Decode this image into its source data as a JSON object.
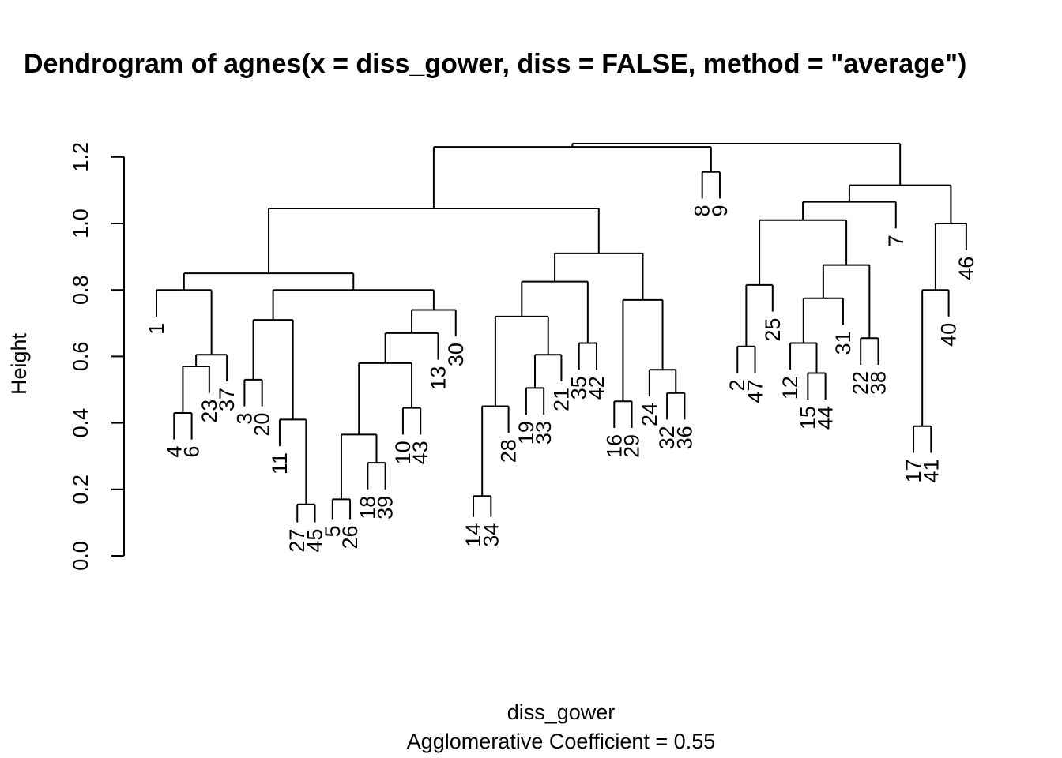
{
  "chart_data": {
    "type": "dendrogram",
    "title": "Dendrogram of  agnes(x = diss_gower, diss = FALSE, method = \"average\")",
    "xlabel": "diss_gower",
    "subtitle": "Agglomerative Coefficient =  0.55",
    "ylabel": "Height",
    "ylim": [
      0,
      1.3
    ],
    "yticks": [
      "0.0",
      "0.2",
      "0.4",
      "0.6",
      "0.8",
      "1.0",
      "1.2"
    ],
    "leaf_order": [
      "1",
      "4",
      "6",
      "23",
      "37",
      "3",
      "20",
      "11",
      "27",
      "45",
      "5",
      "26",
      "18",
      "39",
      "10",
      "43",
      "13",
      "30",
      "14",
      "34",
      "28",
      "19",
      "33",
      "21",
      "35",
      "42",
      "16",
      "29",
      "24",
      "32",
      "36",
      "8",
      "9",
      "2",
      "47",
      "25",
      "12",
      "15",
      "44",
      "31",
      "22",
      "38",
      "7",
      "17",
      "41",
      "40",
      "46"
    ],
    "merges": [
      {
        "a": "27",
        "b": "45",
        "h": 0.155
      },
      {
        "a": "5",
        "b": "26",
        "h": 0.17
      },
      {
        "a": "14",
        "b": "34",
        "h": 0.18
      },
      {
        "a": "18",
        "b": "39",
        "h": 0.28
      },
      {
        "a": "17",
        "b": "41",
        "h": 0.39
      },
      {
        "a": "5,26",
        "b": "18,39",
        "h": 0.365
      },
      {
        "a": "4",
        "b": "6",
        "h": 0.43
      },
      {
        "a": "10",
        "b": "43",
        "h": 0.445
      },
      {
        "a": "14,34",
        "b": "28",
        "h": 0.45
      },
      {
        "a": "16",
        "b": "29",
        "h": 0.465
      },
      {
        "a": "32",
        "b": "36",
        "h": 0.49
      },
      {
        "a": "19",
        "b": "33",
        "h": 0.505
      },
      {
        "a": "3",
        "b": "20",
        "h": 0.53
      },
      {
        "a": "15",
        "b": "44",
        "h": 0.55
      },
      {
        "a": "24",
        "b": "32,36",
        "h": 0.56
      },
      {
        "a": "4,6",
        "b": "23",
        "h": 0.57
      },
      {
        "a": "5,26,18,39",
        "b": "10,43",
        "h": 0.58
      },
      {
        "a": "21",
        "b": "19,33",
        "h": 0.605
      },
      {
        "a": "4,6,23",
        "b": "37",
        "h": 0.605
      },
      {
        "a": "2",
        "b": "47",
        "h": 0.63
      },
      {
        "a": "12",
        "b": "15,44",
        "h": 0.64
      },
      {
        "a": "35",
        "b": "42",
        "h": 0.64
      },
      {
        "a": "22",
        "b": "38",
        "h": 0.655
      },
      {
        "a": "13",
        "b": "5,26,18,39,10,43",
        "h": 0.67
      },
      {
        "a": "11",
        "b": "27,45",
        "h": 0.41
      },
      {
        "a": "3,20",
        "b": "11,27,45",
        "h": 0.71
      },
      {
        "a": "30",
        "b": "13,5,26,18,39,10,43",
        "h": 0.74
      },
      {
        "a": "14,34,28",
        "b": "21,19,33",
        "h": 0.72
      },
      {
        "a": "16,29",
        "b": "24,32,36",
        "h": 0.77
      },
      {
        "a": "12,15,44",
        "b": "31",
        "h": 0.775
      },
      {
        "a": "1",
        "b": "4,6,23,37",
        "h": 0.8
      },
      {
        "a": "3,20,11,27,45",
        "b": "30,13,...",
        "h": 0.8
      },
      {
        "a": "17,41",
        "b": "40",
        "h": 0.8
      },
      {
        "a": "2,47",
        "b": "25",
        "h": 0.815
      },
      {
        "a": "14,34,28,21,19,33",
        "b": "35,42",
        "h": 0.825
      },
      {
        "a": "12,15,44,31",
        "b": "22,38",
        "h": 0.875
      },
      {
        "a": "1,...",
        "b": "3,...",
        "h": 0.85
      },
      {
        "a": "14,...",
        "b": "16,...",
        "h": 0.91
      },
      {
        "a": "17,41,40",
        "b": "46",
        "h": 1.0
      },
      {
        "a": "2,47,25",
        "b": "12,...",
        "h": 1.01
      },
      {
        "a": "1,...",
        "b": "14,...",
        "h": 1.045
      },
      {
        "a": "2,...",
        "b": "7",
        "h": 1.065
      },
      {
        "a": "2,...,7",
        "b": "17,...",
        "h": 1.115
      },
      {
        "a": "8",
        "b": "9",
        "h": 1.155
      },
      {
        "a": "1,...",
        "b": "8,9",
        "h": 1.23
      },
      {
        "a": "1,...,8,9",
        "b": "2,...",
        "h": 1.24
      }
    ]
  }
}
